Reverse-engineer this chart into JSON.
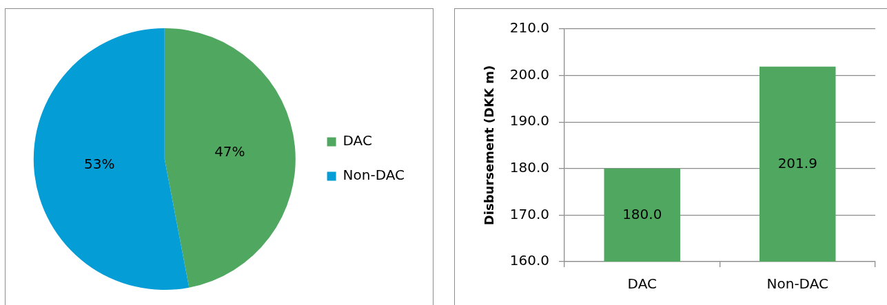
{
  "chart_data": [
    {
      "type": "pie",
      "categories": [
        "DAC",
        "Non-DAC"
      ],
      "values": [
        47,
        53
      ],
      "colors": [
        "#50a860",
        "#059dd6"
      ],
      "value_labels": [
        "47%",
        "53%"
      ],
      "legend": "right"
    },
    {
      "type": "bar",
      "ylabel": "Disbursement (DKK m)",
      "categories": [
        "DAC",
        "Non-DAC"
      ],
      "values": [
        180.0,
        201.9
      ],
      "color": "#50a860",
      "value_labels": [
        "180.0",
        "201.9"
      ],
      "ylim": [
        160,
        210
      ],
      "yticks": [
        {
          "value": 160,
          "label": "160.0"
        },
        {
          "value": 170,
          "label": "170.0"
        },
        {
          "value": 180,
          "label": "180.0"
        },
        {
          "value": 190,
          "label": "190.0"
        },
        {
          "value": 200,
          "label": "200.0"
        },
        {
          "value": 210,
          "label": "210.0"
        }
      ],
      "grid": "y"
    }
  ]
}
